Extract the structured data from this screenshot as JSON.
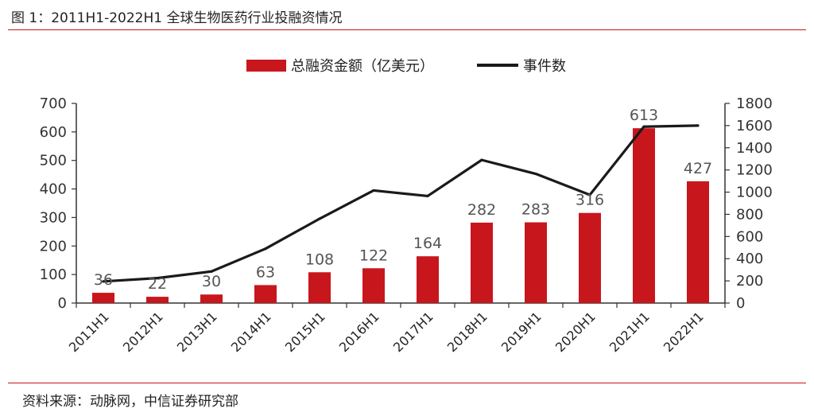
{
  "header": {
    "title": "图 1：2011H1-2022H1 全球生物医药行业投融资情况"
  },
  "footer": {
    "source": "资料来源：动脉网，中信证券研究部"
  },
  "colors": {
    "bar": "#c8161d",
    "line": "#1a1a1a",
    "rule": "#c8161d"
  },
  "chart_data": {
    "type": "bar",
    "title": "",
    "categories": [
      "2011H1",
      "2012H1",
      "2013H1",
      "2014H1",
      "2015H1",
      "2016H1",
      "2017H1",
      "2018H1",
      "2019H1",
      "2020H1",
      "2021H1",
      "2022H1"
    ],
    "series": [
      {
        "name": "总融资金额（亿美元）",
        "type": "bar",
        "axis": "left",
        "values": [
          36,
          22,
          30,
          63,
          108,
          122,
          164,
          282,
          283,
          316,
          613,
          427
        ]
      },
      {
        "name": "事件数",
        "type": "line",
        "axis": "right",
        "values": [
          195,
          225,
          285,
          490,
          760,
          1015,
          965,
          1290,
          1165,
          975,
          1590,
          1600
        ]
      }
    ],
    "y_left": {
      "ylim": [
        0,
        700
      ],
      "ticks": [
        0,
        100,
        200,
        300,
        400,
        500,
        600,
        700
      ]
    },
    "y_right": {
      "ylim": [
        0,
        1800
      ],
      "ticks": [
        0,
        200,
        400,
        600,
        800,
        1000,
        1200,
        1400,
        1600,
        1800
      ]
    },
    "legend": "top-center",
    "grid": false
  }
}
